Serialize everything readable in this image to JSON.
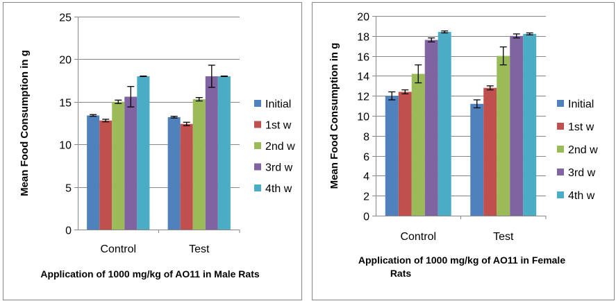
{
  "chart_data": [
    {
      "type": "bar",
      "title": "",
      "xlabel": "Application of 1000 mg/kg of AO11  in Male Rats",
      "ylabel": "Mean Food Consumption in g",
      "ylim": [
        0,
        25
      ],
      "yticks": [
        0,
        5,
        10,
        15,
        20,
        25
      ],
      "grid": true,
      "legend_placement": "right",
      "categories": [
        "Control",
        "Test"
      ],
      "series": [
        {
          "name": "Initial",
          "color": "#4F81BD",
          "values": [
            13.4,
            13.2
          ],
          "errors": [
            0.1,
            0.1
          ]
        },
        {
          "name": "1st w",
          "color": "#C0504D",
          "values": [
            12.8,
            12.4
          ],
          "errors": [
            0.15,
            0.2
          ]
        },
        {
          "name": "2nd w",
          "color": "#9BBB59",
          "values": [
            15.0,
            15.3
          ],
          "errors": [
            0.2,
            0.2
          ]
        },
        {
          "name": "3rd w",
          "color": "#8064A2",
          "values": [
            15.6,
            18.0
          ],
          "errors": [
            1.2,
            1.3
          ]
        },
        {
          "name": "4th w",
          "color": "#4BACC6",
          "values": [
            18.0,
            18.0
          ],
          "errors": [
            0.03,
            0.03
          ]
        }
      ]
    },
    {
      "type": "bar",
      "title": "",
      "xlabel": "Application of 1000 mg/kg of AO11  in Female Rats",
      "ylabel": "Mean Food Consumption in g",
      "ylim": [
        0,
        20
      ],
      "yticks": [
        0,
        2,
        4,
        6,
        8,
        10,
        12,
        14,
        16,
        18,
        20
      ],
      "grid": true,
      "legend_placement": "right",
      "categories": [
        "Control",
        "Test"
      ],
      "series": [
        {
          "name": "Initial",
          "color": "#4F81BD",
          "values": [
            12.0,
            11.2
          ],
          "errors": [
            0.4,
            0.4
          ]
        },
        {
          "name": "1st w",
          "color": "#C0504D",
          "values": [
            12.4,
            12.8
          ],
          "errors": [
            0.2,
            0.2
          ]
        },
        {
          "name": "2nd w",
          "color": "#9BBB59",
          "values": [
            14.2,
            16.0
          ],
          "errors": [
            0.9,
            0.9
          ]
        },
        {
          "name": "3rd w",
          "color": "#8064A2",
          "values": [
            17.6,
            18.0
          ],
          "errors": [
            0.2,
            0.2
          ]
        },
        {
          "name": "4th w",
          "color": "#4BACC6",
          "values": [
            18.4,
            18.2
          ],
          "errors": [
            0.1,
            0.1
          ]
        }
      ]
    }
  ]
}
